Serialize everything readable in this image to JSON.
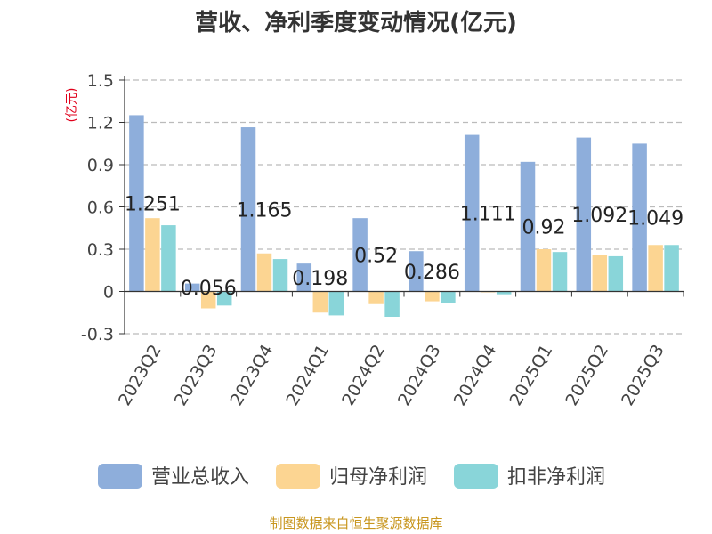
{
  "chart_data": {
    "type": "bar",
    "title": "营收、净利季度变动情况(亿元)",
    "unit_label": "(亿元)",
    "categories": [
      "2023Q2",
      "2023Q3",
      "2023Q4",
      "2024Q1",
      "2024Q2",
      "2024Q3",
      "2024Q4",
      "2025Q1",
      "2025Q2",
      "2025Q3"
    ],
    "series": [
      {
        "name": "营业总收入",
        "color": "#8eaedb",
        "values": [
          1.251,
          0.056,
          1.165,
          0.198,
          0.52,
          0.286,
          1.111,
          0.92,
          1.092,
          1.049
        ],
        "labels": [
          "1.251",
          "0.056",
          "1.165",
          "0.198",
          "0.52",
          "0.286",
          "1.111",
          "0.92",
          "1.092",
          "1.049"
        ]
      },
      {
        "name": "归母净利润",
        "color": "#fcd592",
        "values": [
          0.52,
          -0.12,
          0.27,
          -0.15,
          -0.09,
          -0.07,
          0.0,
          0.3,
          0.26,
          0.33
        ]
      },
      {
        "name": "扣非净利润",
        "color": "#89d5d9",
        "values": [
          0.47,
          -0.1,
          0.23,
          -0.17,
          -0.18,
          -0.08,
          -0.02,
          0.28,
          0.25,
          0.33
        ]
      }
    ],
    "yticks": [
      "1.5",
      "1.2",
      "0.9",
      "0.6",
      "0.3",
      "0",
      "-0.3"
    ],
    "ylim": [
      -0.3,
      1.5
    ],
    "grid": true,
    "legend_position": "bottom"
  },
  "footer": {
    "source": "制图数据来自恒生聚源数据库"
  }
}
